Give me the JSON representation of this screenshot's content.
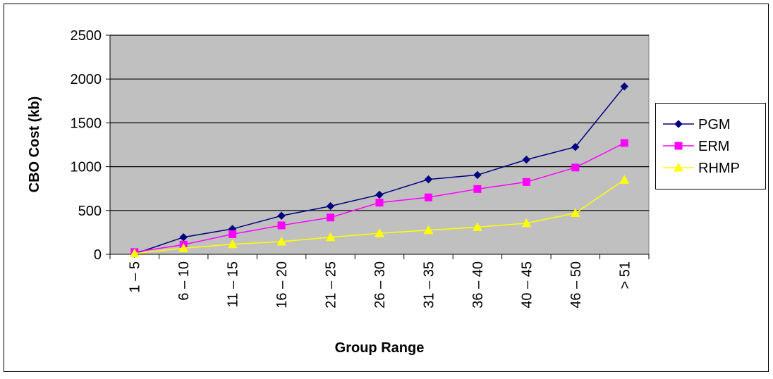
{
  "chart_data": {
    "type": "line",
    "title": "",
    "xlabel": "Group Range",
    "ylabel": "CBO Cost (kb)",
    "categories": [
      "1 – 5",
      "6 – 10",
      "11 – 15",
      "16 – 20",
      "21 – 25",
      "26 – 30",
      "31 – 35",
      "36 – 40",
      "40 – 45",
      "46 – 50",
      "> 51"
    ],
    "ylim": [
      0,
      2500
    ],
    "yticks": [
      0,
      500,
      1000,
      1500,
      2000,
      2500
    ],
    "grid": "horizontal",
    "legend_position": "right",
    "plot_background": "#c0c0c0",
    "series": [
      {
        "name": "PGM",
        "color": "#000080",
        "marker": "diamond",
        "values": [
          5,
          195,
          290,
          440,
          550,
          680,
          855,
          905,
          1080,
          1225,
          1915
        ]
      },
      {
        "name": "ERM",
        "color": "#ff00ff",
        "marker": "square",
        "values": [
          25,
          110,
          230,
          330,
          420,
          590,
          650,
          745,
          825,
          990,
          1270
        ]
      },
      {
        "name": "RHMP",
        "color": "#ffff00",
        "marker": "triangle",
        "values": [
          10,
          70,
          115,
          145,
          195,
          240,
          275,
          310,
          355,
          470,
          850
        ]
      }
    ]
  }
}
